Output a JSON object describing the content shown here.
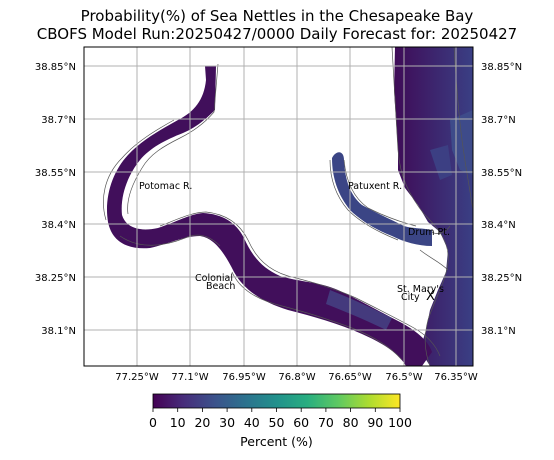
{
  "title": {
    "line1": "Probability(%) of Sea Nettles in the Chesapeake Bay",
    "line2": "CBOFS Model Run:20250427/0000 Daily Forecast for: 20250427"
  },
  "axes": {
    "lat_ticks": [
      "38.85°N",
      "38.7°N",
      "38.55°N",
      "38.4°N",
      "38.25°N",
      "38.1°N"
    ],
    "lon_ticks": [
      "77.25°W",
      "77.1°W",
      "76.95°W",
      "76.8°W",
      "76.65°W",
      "76.5°W",
      "76.35°W"
    ],
    "gridlines": true
  },
  "places": {
    "potomac": "Potomac R.",
    "patuxent": "Patuxent R.",
    "drum": "Drum Pt.",
    "colonial_1": "Colonial",
    "colonial_2": "Beach",
    "stmarys_1": "St. Mary's",
    "stmarys_2": "City",
    "marker": "X"
  },
  "colorbar": {
    "label": "Percent (%)",
    "ticks": [
      "0",
      "10",
      "20",
      "30",
      "40",
      "50",
      "60",
      "70",
      "80",
      "90",
      "100"
    ],
    "colormap": [
      "#440154",
      "#472d7b",
      "#3b528b",
      "#2c728e",
      "#21918c",
      "#28ae80",
      "#5ec962",
      "#addc30",
      "#fde725"
    ]
  },
  "colors": {
    "low_probability": "#3f0b57",
    "mid_probability": "#3e4b8a",
    "frame": "#000000",
    "grid": "#b0b0b0"
  }
}
